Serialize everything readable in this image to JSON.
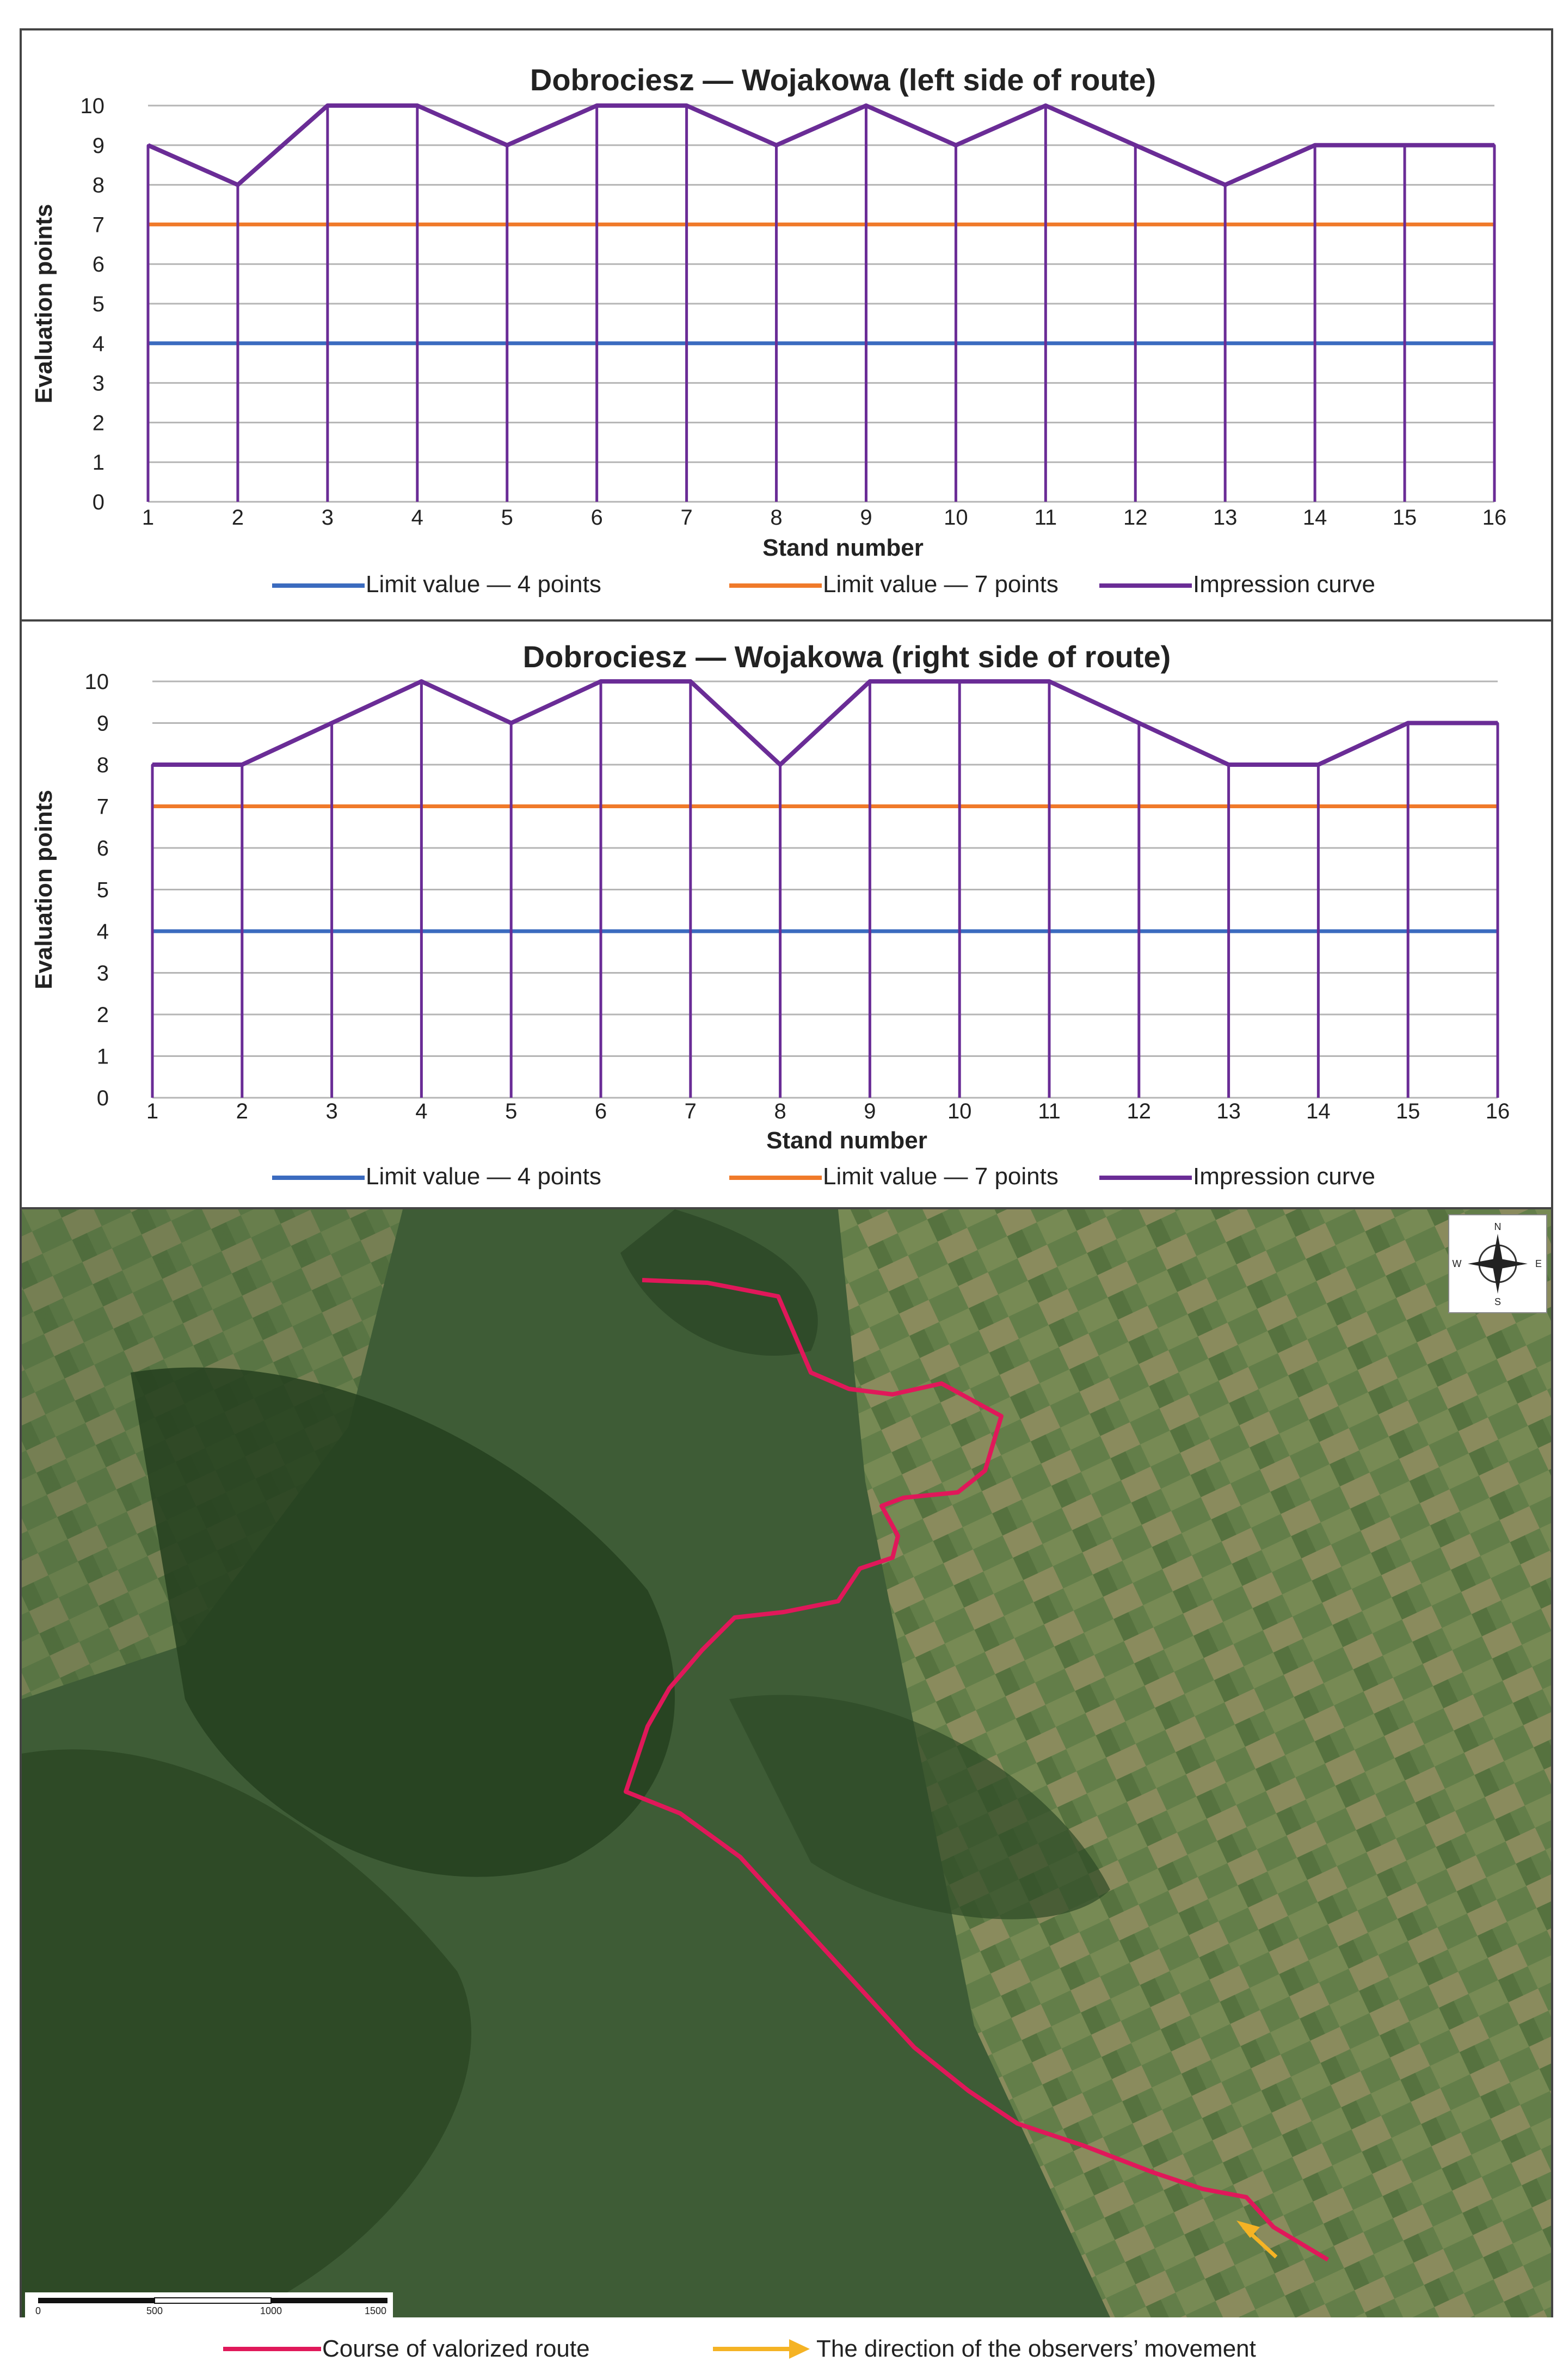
{
  "chart_data": [
    {
      "type": "line",
      "title": "Dobrociesz — Wojakowa (left side of route)",
      "xlabel": "Stand number",
      "ylabel": "Evaluation points",
      "categories": [
        "1",
        "2",
        "3",
        "4",
        "5",
        "6",
        "7",
        "8",
        "9",
        "10",
        "11",
        "12",
        "13",
        "14",
        "15",
        "16"
      ],
      "ylim": [
        0,
        10
      ],
      "yticks": [
        "0",
        "1",
        "2",
        "3",
        "4",
        "5",
        "6",
        "7",
        "8",
        "9",
        "10"
      ],
      "grid": true,
      "legend_position": "bottom",
      "series": [
        {
          "name": "Limit value — 4 points",
          "color": "#3b6bbf",
          "values": [
            4,
            4,
            4,
            4,
            4,
            4,
            4,
            4,
            4,
            4,
            4,
            4,
            4,
            4,
            4,
            4
          ]
        },
        {
          "name": "Limit value — 7 points",
          "color": "#f07a2a",
          "values": [
            7,
            7,
            7,
            7,
            7,
            7,
            7,
            7,
            7,
            7,
            7,
            7,
            7,
            7,
            7,
            7
          ]
        },
        {
          "name": "Impression curve",
          "color": "#6a2c96",
          "values": [
            9,
            8,
            10,
            10,
            9,
            10,
            10,
            9,
            10,
            9,
            10,
            9,
            8,
            9,
            9,
            9
          ]
        }
      ]
    },
    {
      "type": "line",
      "title": "Dobrociesz — Wojakowa (right side of route)",
      "xlabel": "Stand number",
      "ylabel": "Evaluation points",
      "categories": [
        "1",
        "2",
        "3",
        "4",
        "5",
        "6",
        "7",
        "8",
        "9",
        "10",
        "11",
        "12",
        "13",
        "14",
        "15",
        "16"
      ],
      "ylim": [
        0,
        10
      ],
      "yticks": [
        "0",
        "1",
        "2",
        "3",
        "4",
        "5",
        "6",
        "7",
        "8",
        "9",
        "10"
      ],
      "grid": true,
      "legend_position": "bottom",
      "series": [
        {
          "name": "Limit value — 4 points",
          "color": "#3b6bbf",
          "values": [
            4,
            4,
            4,
            4,
            4,
            4,
            4,
            4,
            4,
            4,
            4,
            4,
            4,
            4,
            4,
            4
          ]
        },
        {
          "name": "Limit value — 7 points",
          "color": "#f07a2a",
          "values": [
            7,
            7,
            7,
            7,
            7,
            7,
            7,
            7,
            7,
            7,
            7,
            7,
            7,
            7,
            7,
            7
          ]
        },
        {
          "name": "Impression curve",
          "color": "#6a2c96",
          "values": [
            8,
            8,
            9,
            10,
            9,
            10,
            10,
            8,
            10,
            10,
            10,
            9,
            8,
            8,
            9,
            9
          ]
        }
      ]
    }
  ],
  "map": {
    "compass": {
      "n": "N",
      "s": "S",
      "e": "E",
      "w": "W"
    },
    "scale_bar": {
      "labels": [
        "0",
        "500",
        "1000",
        "1500"
      ]
    },
    "route_color": "#e0185a",
    "arrow_color": "#f5b324"
  },
  "legend_bottom": {
    "route_label": "Course of valorized route",
    "direction_label": "The direction of the observers’ movement",
    "route_color": "#e0185a",
    "arrow_color": "#f5b324"
  }
}
